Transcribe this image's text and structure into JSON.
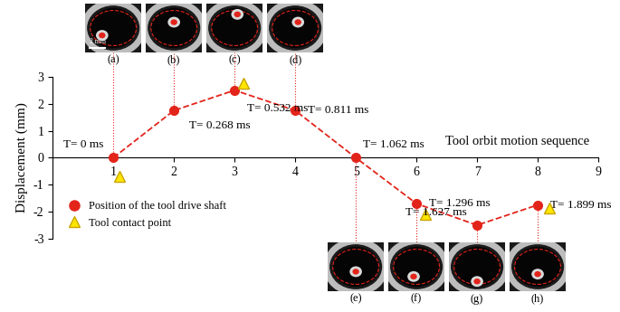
{
  "chart_data": {
    "type": "line",
    "annotations": [
      "Tool orbit motion sequence"
    ],
    "y_label": "Displacement (mm)",
    "x": [
      1,
      2,
      3,
      4,
      5,
      6,
      7,
      8
    ],
    "series": [
      {
        "name": "Position of the tool drive shaft",
        "type": "line",
        "color": "#e3241b",
        "marker": "o",
        "line_style": "dashed",
        "values": [
          0,
          1.75,
          2.5,
          1.75,
          0,
          -1.7,
          -2.5,
          -1.75
        ],
        "point_labels": [
          "T= 0 ms",
          "T= 0.268 ms",
          "T= 0.532 ms",
          "T= 0.811 ms",
          "T= 1.062 ms",
          "T= 1.296 ms",
          "T= 1.627 ms",
          "T= 1.899 ms"
        ]
      },
      {
        "name": "Tool contact point",
        "type": "scatter",
        "color": "#ffe600",
        "marker": "^",
        "x": [
          1.1,
          3.15,
          6.15,
          8.2
        ],
        "values": [
          -0.7,
          2.75,
          -2.1,
          -1.85
        ]
      }
    ],
    "xlim": [
      0,
      9
    ],
    "xticks": [
      1,
      2,
      3,
      4,
      5,
      6,
      7,
      8,
      9
    ],
    "ylim": [
      -3,
      3
    ],
    "yticks": [
      -3,
      -2,
      -1,
      0,
      1,
      2,
      3
    ],
    "legend": "lower left",
    "panels": [
      "(a)",
      "(b)",
      "(c)",
      "(d)",
      "(e)",
      "(f)",
      "(g)",
      "(h)"
    ],
    "scale_bar": "2 mm"
  }
}
